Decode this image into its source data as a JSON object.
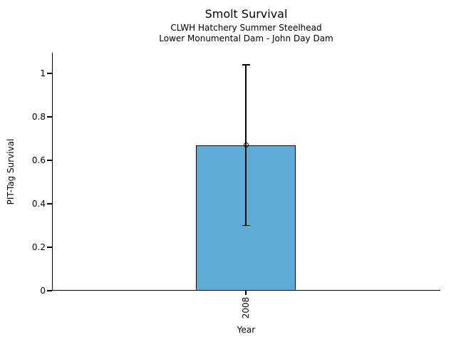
{
  "chart_data": {
    "type": "bar",
    "title": "Smolt Survival",
    "subtitle_lines": [
      "CLWH Hatchery Summer Steelhead",
      "Lower Monumental Dam - John Day Dam"
    ],
    "xlabel": "Year",
    "ylabel": "PIT-Tag Survival",
    "categories": [
      "2008"
    ],
    "values": [
      0.67
    ],
    "error_low": [
      0.3
    ],
    "error_high": [
      1.04
    ],
    "ylim": [
      0,
      1.1
    ],
    "yticks": [
      0,
      0.2,
      0.4,
      0.6,
      0.8,
      1
    ],
    "ytick_labels": [
      "0",
      "0.2",
      "0.4",
      "0.6",
      "0.8",
      "1"
    ],
    "grid": false,
    "legend_position": "none",
    "bar_color": "#5CACD8",
    "bar_edge_color": "#000000",
    "error_bar_color": "#000000",
    "marker": "open-circle"
  }
}
